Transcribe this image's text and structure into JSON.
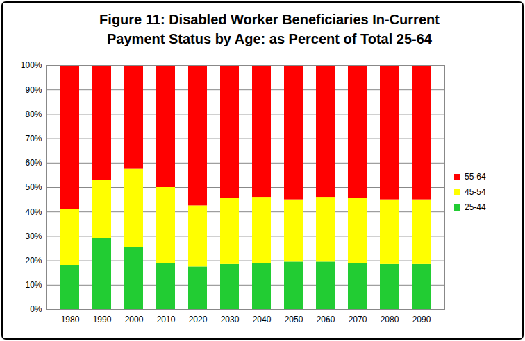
{
  "chart_data": {
    "type": "bar",
    "stacked": true,
    "title": "Figure 11: Disabled Worker Beneficiaries In-Current Payment Status by Age: as Percent of Total 25-64",
    "categories": [
      "1980",
      "1990",
      "2000",
      "2010",
      "2020",
      "2030",
      "2040",
      "2050",
      "2060",
      "2070",
      "2080",
      "2090"
    ],
    "series": [
      {
        "name": "25-44",
        "color": "#22cc33",
        "values": [
          18,
          29,
          25.5,
          19,
          17.5,
          18.5,
          19,
          19.5,
          19.5,
          19,
          18.5,
          18.5
        ]
      },
      {
        "name": "45-54",
        "color": "#ffff00",
        "values": [
          23,
          24,
          32,
          31,
          25,
          27,
          27,
          25.5,
          26.5,
          26.5,
          26.5,
          26.5
        ]
      },
      {
        "name": "55-64",
        "color": "#ff0000",
        "values": [
          59,
          47,
          42.5,
          50,
          57.5,
          54.5,
          54,
          55,
          54,
          54.5,
          55,
          55
        ]
      }
    ],
    "ylim": [
      0,
      100
    ],
    "yticks": [
      {
        "value": 0,
        "label": "0%"
      },
      {
        "value": 10,
        "label": "10%"
      },
      {
        "value": 20,
        "label": "20%"
      },
      {
        "value": 30,
        "label": "30%"
      },
      {
        "value": 40,
        "label": "40%"
      },
      {
        "value": 50,
        "label": "50%"
      },
      {
        "value": 60,
        "label": "60%"
      },
      {
        "value": 70,
        "label": "70%"
      },
      {
        "value": 80,
        "label": "80%"
      },
      {
        "value": 90,
        "label": "90%"
      },
      {
        "value": 100,
        "label": "100%"
      }
    ],
    "grid": true,
    "legend": "right"
  }
}
